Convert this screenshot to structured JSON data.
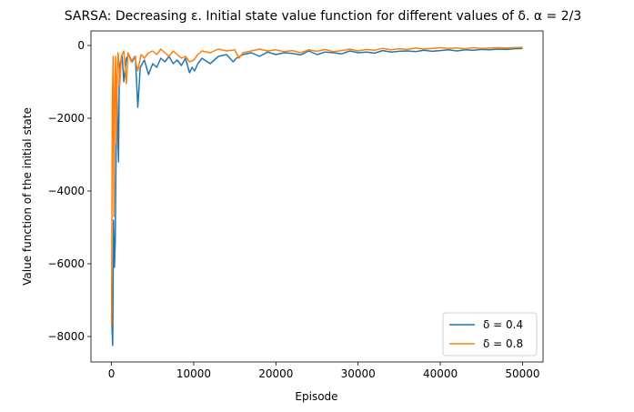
{
  "chart_data": {
    "type": "line",
    "title": "SARSA: Decreasing ε. Initial state value function for different values of δ. α = 2/3",
    "xlabel": "Episode",
    "ylabel": "Value function of the initial state",
    "xlim": [
      -2500,
      52500
    ],
    "ylim": [
      -8700,
      400
    ],
    "xticks": [
      0,
      10000,
      20000,
      30000,
      40000,
      50000
    ],
    "yticks": [
      -8000,
      -6000,
      -4000,
      -2000,
      0
    ],
    "grid": false,
    "legend_position": "lower right",
    "series": [
      {
        "name": "δ = 0.4",
        "color": "#1f77b4",
        "x": [
          0,
          150,
          250,
          350,
          450,
          550,
          650,
          750,
          850,
          950,
          1100,
          1300,
          1500,
          1800,
          2100,
          2500,
          2900,
          3200,
          3500,
          4000,
          4500,
          5000,
          5500,
          6000,
          6500,
          7000,
          7500,
          8000,
          8500,
          9000,
          9500,
          9800,
          10100,
          10500,
          11000,
          12000,
          13000,
          14000,
          14800,
          15200,
          16000,
          17000,
          18000,
          19000,
          20000,
          21000,
          22000,
          23000,
          24000,
          25000,
          26000,
          27000,
          28000,
          29000,
          30000,
          31000,
          32000,
          33000,
          34000,
          35000,
          36000,
          37000,
          38000,
          39000,
          40000,
          41000,
          42000,
          43000,
          44000,
          45000,
          46000,
          47000,
          48000,
          49000,
          50000
        ],
        "y": [
          -7400,
          -8250,
          -4800,
          -6100,
          -5400,
          -3000,
          -900,
          -2500,
          -3200,
          -700,
          -450,
          -300,
          -1000,
          -350,
          -250,
          -450,
          -300,
          -1700,
          -600,
          -400,
          -800,
          -500,
          -600,
          -350,
          -450,
          -300,
          -500,
          -400,
          -550,
          -350,
          -750,
          -600,
          -700,
          -500,
          -350,
          -500,
          -300,
          -250,
          -450,
          -350,
          -250,
          -200,
          -300,
          -180,
          -250,
          -200,
          -220,
          -260,
          -150,
          -250,
          -180,
          -200,
          -230,
          -150,
          -200,
          -180,
          -210,
          -140,
          -180,
          -160,
          -150,
          -170,
          -130,
          -160,
          -140,
          -120,
          -150,
          -120,
          -130,
          -110,
          -120,
          -100,
          -110,
          -90,
          -80
        ]
      },
      {
        "name": "δ = 0.8",
        "color": "#ff7f0e",
        "x": [
          0,
          100,
          200,
          300,
          400,
          500,
          600,
          700,
          800,
          900,
          1000,
          1200,
          1500,
          1800,
          2000,
          2400,
          2800,
          3200,
          3600,
          4000,
          4500,
          5000,
          5500,
          6000,
          6500,
          7000,
          7500,
          8000,
          8500,
          9000,
          9500,
          10000,
          10500,
          11000,
          12000,
          13000,
          14000,
          15000,
          15500,
          16000,
          17000,
          18000,
          19000,
          20000,
          21000,
          22000,
          23000,
          24000,
          25000,
          26000,
          27000,
          28000,
          29000,
          30000,
          31000,
          32000,
          33000,
          34000,
          35000,
          36000,
          37000,
          38000,
          39000,
          40000,
          41000,
          42000,
          43000,
          44000,
          45000,
          46000,
          47000,
          48000,
          49000,
          50000
        ],
        "y": [
          -7700,
          -1500,
          -300,
          -4700,
          -1200,
          -300,
          -2700,
          -800,
          -200,
          -500,
          -1100,
          -300,
          -150,
          -1050,
          -200,
          -450,
          -300,
          -700,
          -250,
          -350,
          -200,
          -150,
          -250,
          -100,
          -200,
          -300,
          -150,
          -250,
          -350,
          -300,
          -450,
          -400,
          -250,
          -150,
          -200,
          -100,
          -150,
          -120,
          -350,
          -200,
          -150,
          -100,
          -150,
          -120,
          -170,
          -140,
          -200,
          -120,
          -160,
          -110,
          -170,
          -140,
          -100,
          -150,
          -110,
          -130,
          -80,
          -120,
          -90,
          -110,
          -70,
          -100,
          -80,
          -60,
          -80,
          -70,
          -90,
          -60,
          -80,
          -70,
          -60,
          -70,
          -60,
          -50
        ]
      }
    ]
  }
}
